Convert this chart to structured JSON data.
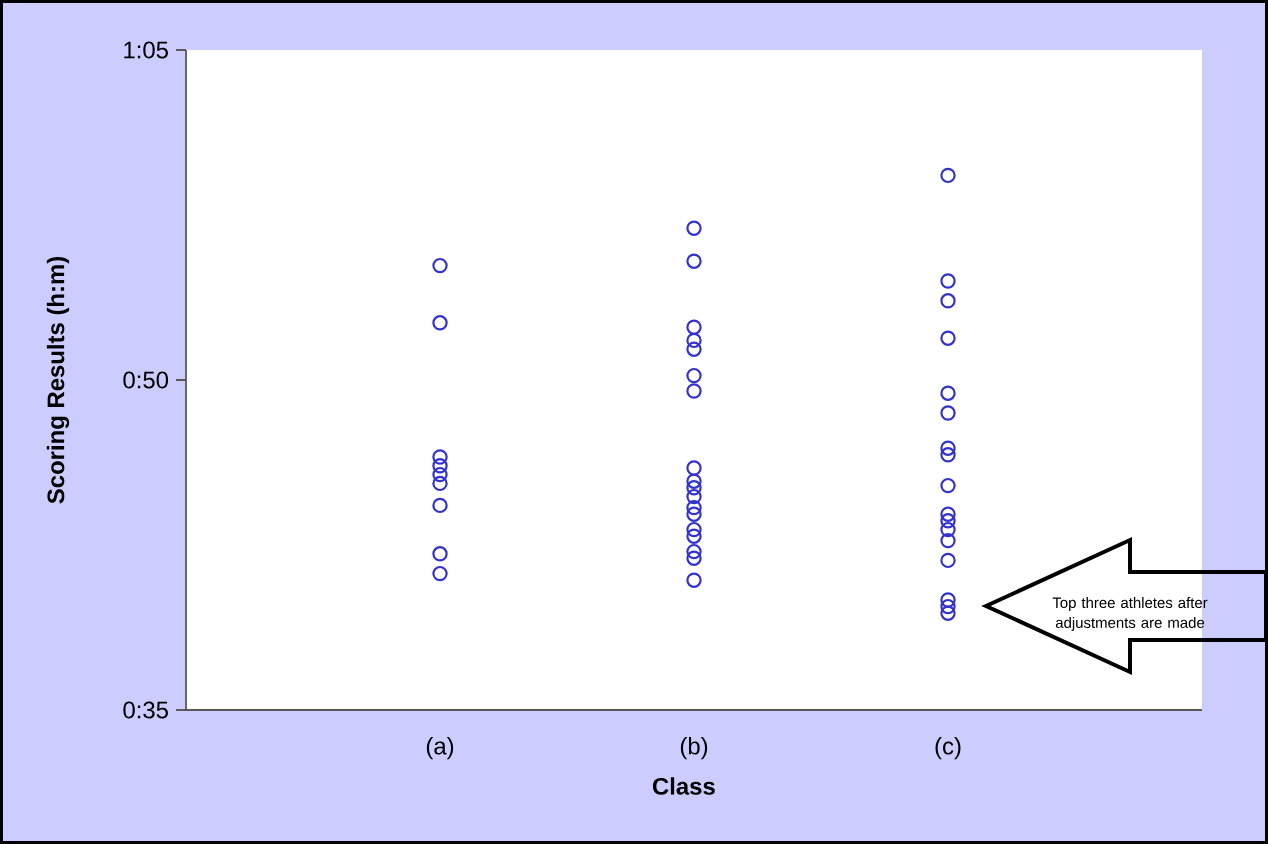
{
  "chart_data": {
    "type": "scatter",
    "xlabel": "Class",
    "ylabel": "Scoring Results (h:m)",
    "categories": [
      "(a)",
      "(b)",
      "(c)"
    ],
    "ylim": [
      35,
      65
    ],
    "yticks": [
      {
        "value": 35,
        "label": "0:35"
      },
      {
        "value": 50,
        "label": "0:50"
      },
      {
        "value": 65,
        "label": "1:05"
      }
    ],
    "marker": "circle",
    "series": [
      {
        "color": "#3333cc",
        "x": [
          "(a)",
          "(a)",
          "(a)",
          "(a)",
          "(a)",
          "(a)",
          "(a)",
          "(a)",
          "(a)",
          "(b)",
          "(b)",
          "(b)",
          "(b)",
          "(b)",
          "(b)",
          "(b)",
          "(b)",
          "(b)",
          "(b)",
          "(b)",
          "(b)",
          "(b)",
          "(b)",
          "(b)",
          "(b)",
          "(b)",
          "(b)",
          "(c)",
          "(c)",
          "(c)",
          "(c)",
          "(c)",
          "(c)",
          "(c)",
          "(c)",
          "(c)",
          "(c)",
          "(c)",
          "(c)",
          "(c)",
          "(c)",
          "(c)",
          "(c)",
          "(c)"
        ],
        "values": [
          55.2,
          52.6,
          46.5,
          46.1,
          45.7,
          45.3,
          44.3,
          42.1,
          41.2,
          56.9,
          55.4,
          52.4,
          51.8,
          51.4,
          50.2,
          49.5,
          46.0,
          45.4,
          45.1,
          44.7,
          44.2,
          43.9,
          43.2,
          42.9,
          42.2,
          41.9,
          40.9,
          59.3,
          54.5,
          53.6,
          51.9,
          49.4,
          48.5,
          46.9,
          46.6,
          45.2,
          43.9,
          43.6,
          43.2,
          42.7,
          41.8,
          40.0,
          39.7,
          39.4
        ]
      }
    ],
    "annotations": [
      "Top three athletes after adjustments are made"
    ]
  }
}
